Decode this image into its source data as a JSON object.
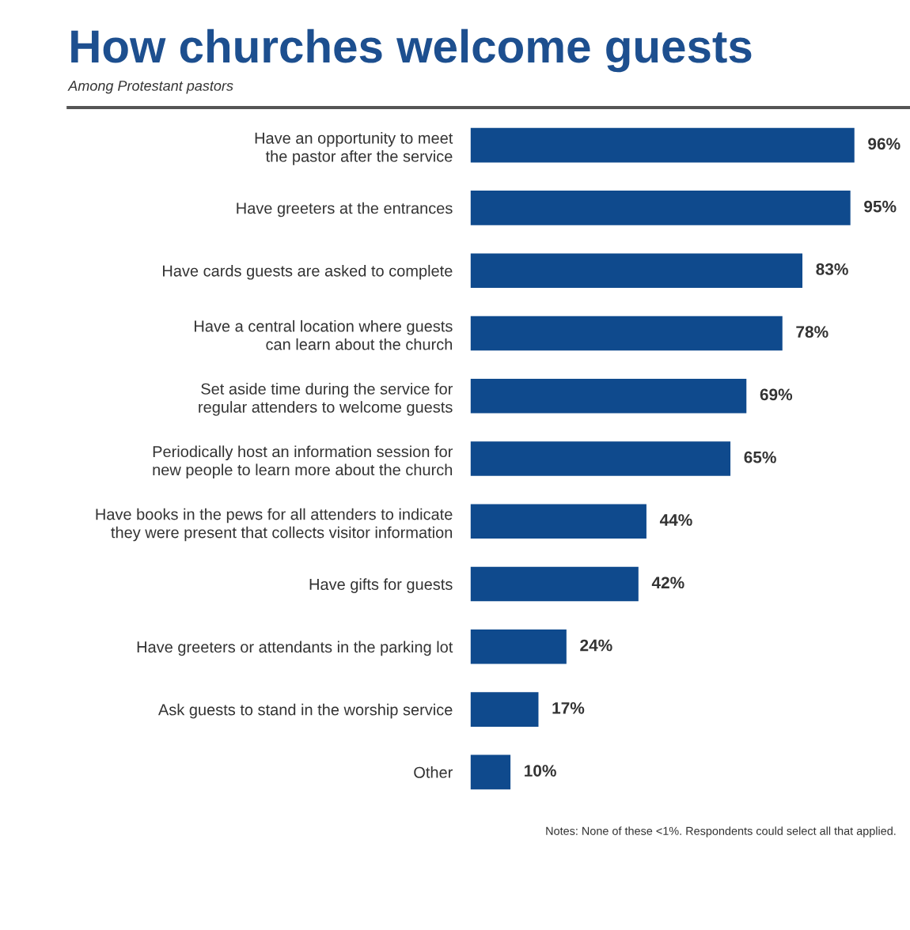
{
  "chart_data": {
    "type": "bar",
    "orientation": "horizontal",
    "title": "How churches welcome guests",
    "subtitle": "Among Protestant pastors",
    "categories": [
      "Have an opportunity to meet\nthe pastor after the service",
      "Have greeters at the entrances",
      "Have cards guests are asked to complete",
      "Have a central location where guests\ncan learn about the church",
      "Set aside time during the service for\nregular attenders to welcome guests",
      "Periodically host an information session for\nnew people to learn more about the church",
      "Have books in the pews for all attenders to indicate\nthey were present that collects visitor information",
      "Have gifts for guests",
      "Have greeters or attendants in the parking lot",
      "Ask guests to stand in the worship service",
      "Other"
    ],
    "values": [
      96,
      95,
      83,
      78,
      69,
      65,
      44,
      42,
      24,
      17,
      10
    ],
    "value_labels": [
      "96%",
      "95%",
      "83%",
      "78%",
      "69%",
      "65%",
      "44%",
      "42%",
      "24%",
      "17%",
      "10%"
    ],
    "color": "#0f4a8d",
    "tick_labels": "y",
    "grid": false,
    "legend": false,
    "annotations": [
      "Notes: None of these <1%. Respondents could select all that applied."
    ]
  }
}
